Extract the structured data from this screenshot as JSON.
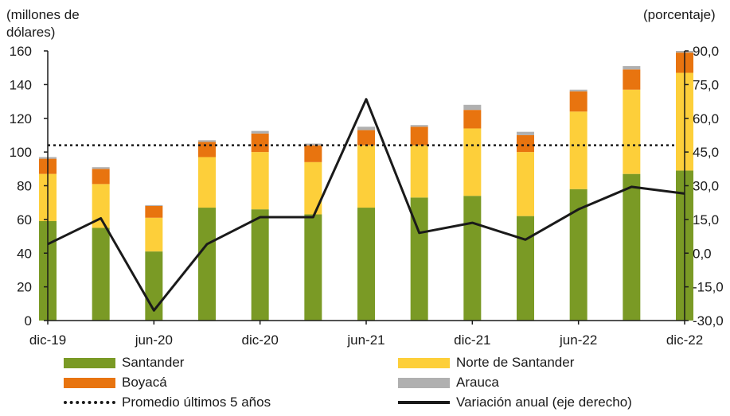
{
  "chart_data": {
    "type": "bar",
    "left_axis_label": "(millones de\ndólares)",
    "right_axis_label": "(porcentaje)",
    "x_tick_labels": [
      "dic-19",
      "jun-20",
      "dic-20",
      "jun-21",
      "dic-21",
      "jun-22",
      "dic-22"
    ],
    "categories": [
      "dic-19",
      "mar-20",
      "jun-20",
      "sep-20",
      "dic-20",
      "mar-21",
      "jun-21",
      "sep-21",
      "dic-21",
      "mar-22",
      "jun-22",
      "sep-22",
      "dic-22"
    ],
    "ylim": [
      0,
      160
    ],
    "y_ticks": [
      "0",
      "20",
      "40",
      "60",
      "80",
      "100",
      "120",
      "140",
      "160"
    ],
    "y2lim": [
      -30,
      90
    ],
    "y2_ticks": [
      "-30,0",
      "-15,0",
      "0,0",
      "15,0",
      "30,0",
      "45,0",
      "60,0",
      "75,0",
      "90,0"
    ],
    "series": [
      {
        "name": "Santander",
        "color": "#7a9a25",
        "values": [
          59,
          55,
          41,
          67,
          66,
          63,
          67,
          73,
          74,
          62,
          78,
          87,
          89
        ]
      },
      {
        "name": "Norte de Santander",
        "color": "#fdcf3a",
        "values": [
          28,
          26,
          20,
          30,
          34,
          31,
          37,
          31,
          40,
          38,
          46,
          50,
          58
        ]
      },
      {
        "name": "Boyacá",
        "color": "#e8740f",
        "values": [
          9,
          9,
          7,
          9,
          11,
          10,
          9,
          11,
          11,
          10,
          12,
          12,
          12
        ]
      },
      {
        "name": "Arauca",
        "color": "#b0b0b0",
        "values": [
          1,
          1,
          0.5,
          1,
          1.5,
          1,
          2,
          1,
          3,
          2,
          1,
          2,
          1
        ]
      }
    ],
    "average_line": {
      "name": "Promedio últimos 5 años",
      "value": 104
    },
    "variation_line": {
      "name": "Variación anual (eje derecho)",
      "axis": "right",
      "values": [
        4,
        15.5,
        -25.5,
        4,
        16,
        16,
        68.5,
        9,
        13.5,
        6,
        19.5,
        29.5,
        26.5
      ]
    },
    "legend": {
      "santander": "Santander",
      "norte": "Norte de Santander",
      "boyaca": "Boyacá",
      "arauca": "Arauca",
      "promedio": "Promedio últimos 5 años",
      "variacion": "Variación anual (eje derecho)"
    }
  }
}
